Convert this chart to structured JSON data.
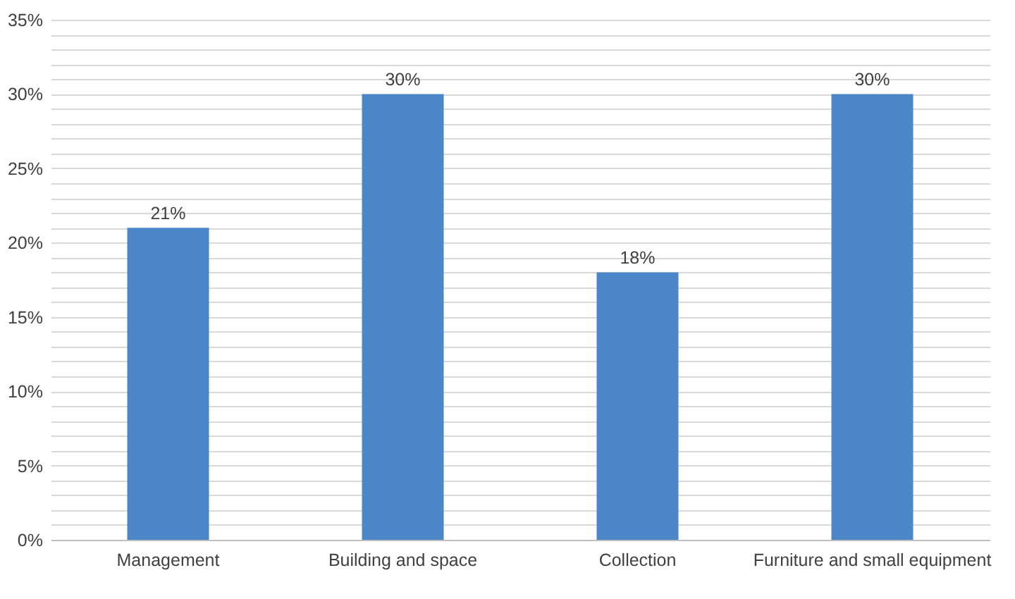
{
  "chart_data": {
    "type": "bar",
    "categories": [
      "Management",
      "Building and space",
      "Collection",
      "Furniture and small equipment"
    ],
    "values": [
      21,
      30,
      18,
      30
    ],
    "value_labels": [
      "21%",
      "30%",
      "18%",
      "30%"
    ],
    "color": "#4a86c8",
    "ylim": [
      0,
      35
    ],
    "yticks": [
      {
        "value": 0,
        "label": "0%"
      },
      {
        "value": 1,
        "label": null
      },
      {
        "value": 2,
        "label": null
      },
      {
        "value": 3,
        "label": null
      },
      {
        "value": 4,
        "label": null
      },
      {
        "value": 5,
        "label": "5%"
      },
      {
        "value": 6,
        "label": null
      },
      {
        "value": 7,
        "label": null
      },
      {
        "value": 8,
        "label": null
      },
      {
        "value": 9,
        "label": null
      },
      {
        "value": 10,
        "label": "10%"
      },
      {
        "value": 11,
        "label": null
      },
      {
        "value": 12,
        "label": null
      },
      {
        "value": 13,
        "label": null
      },
      {
        "value": 14,
        "label": null
      },
      {
        "value": 15,
        "label": "15%"
      },
      {
        "value": 16,
        "label": null
      },
      {
        "value": 17,
        "label": null
      },
      {
        "value": 18,
        "label": null
      },
      {
        "value": 19,
        "label": null
      },
      {
        "value": 20,
        "label": "20%"
      },
      {
        "value": 21,
        "label": null
      },
      {
        "value": 22,
        "label": null
      },
      {
        "value": 23,
        "label": null
      },
      {
        "value": 24,
        "label": null
      },
      {
        "value": 25,
        "label": "25%"
      },
      {
        "value": 26,
        "label": null
      },
      {
        "value": 27,
        "label": null
      },
      {
        "value": 28,
        "label": null
      },
      {
        "value": 29,
        "label": null
      },
      {
        "value": 30,
        "label": "30%"
      },
      {
        "value": 31,
        "label": null
      },
      {
        "value": 32,
        "label": null
      },
      {
        "value": 33,
        "label": null
      },
      {
        "value": 34,
        "label": null
      },
      {
        "value": 35,
        "label": "35%"
      }
    ],
    "grid": true
  }
}
